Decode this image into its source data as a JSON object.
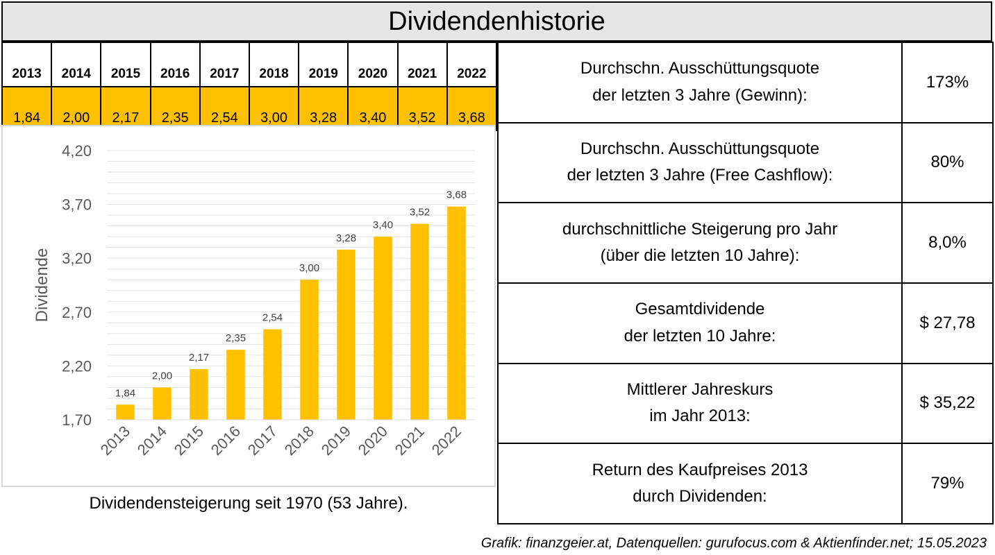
{
  "title": "Dividendenhistorie",
  "year_table": {
    "years": [
      "2013",
      "2014",
      "2015",
      "2016",
      "2017",
      "2018",
      "2019",
      "2020",
      "2021",
      "2022"
    ],
    "values": [
      "1,84",
      "2,00",
      "2,17",
      "2,35",
      "2,54",
      "3,00",
      "3,28",
      "3,40",
      "3,52",
      "3,68"
    ]
  },
  "metrics": [
    {
      "label_line1": "Durchschn. Ausschüttungsquote",
      "label_line2": "der letzten 3 Jahre (Gewinn):",
      "value": "173%"
    },
    {
      "label_line1": "Durchschn. Ausschüttungsquote",
      "label_line2": "der letzten 3 Jahre (Free Cashflow):",
      "value": "80%"
    },
    {
      "label_line1": "durchschnittliche Steigerung pro Jahr",
      "label_line2": "(über die letzten 10 Jahre):",
      "value": "8,0%"
    },
    {
      "label_line1": "Gesamtdividende",
      "label_line2": "der letzten 10 Jahre:",
      "value": "$ 27,78"
    },
    {
      "label_line1": "Mittlerer Jahreskurs",
      "label_line2": "im Jahr 2013:",
      "value": "$ 35,22"
    },
    {
      "label_line1": "Return des Kaufpreises 2013",
      "label_line2": "durch Dividenden:",
      "value": "79%"
    }
  ],
  "caption": "Dividendensteigerung seit 1970 (53 Jahre).",
  "footer": "Grafik: finanzgeier.at, Datenquellen: gurufocus.com & Aktienfinder.net; 15.05.2023",
  "colors": {
    "bar": "#ffc000",
    "header_bg": "#e6e6e6"
  },
  "chart_data": {
    "type": "bar",
    "categories": [
      "2013",
      "2014",
      "2015",
      "2016",
      "2017",
      "2018",
      "2019",
      "2020",
      "2021",
      "2022"
    ],
    "values": [
      1.84,
      2.0,
      2.17,
      2.35,
      2.54,
      3.0,
      3.28,
      3.4,
      3.52,
      3.68
    ],
    "data_labels": [
      "1,84",
      "2,00",
      "2,17",
      "2,35",
      "2,54",
      "3,00",
      "3,28",
      "3,40",
      "3,52",
      "3,68"
    ],
    "ylabel": "Dividende",
    "ylim": [
      1.7,
      4.2
    ],
    "yticks": [
      1.7,
      2.2,
      2.7,
      3.2,
      3.7,
      4.2
    ],
    "ytick_labels": [
      "1,70",
      "2,20",
      "2,70",
      "3,20",
      "3,70",
      "4,20"
    ],
    "minor_grid_step": 0.1,
    "grid": true,
    "legend": "none"
  }
}
